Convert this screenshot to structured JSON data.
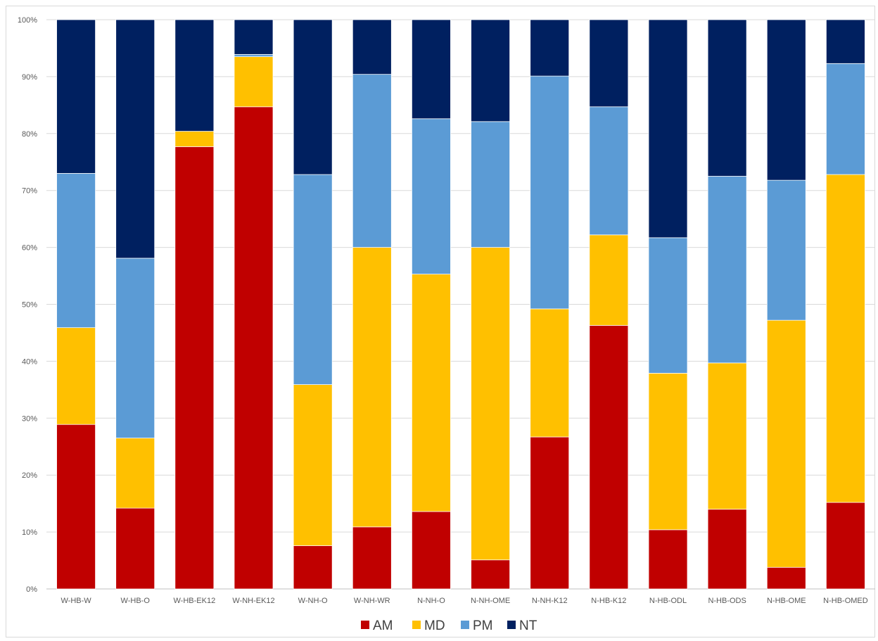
{
  "chart_data": {
    "type": "bar",
    "stacked": "percent",
    "categories": [
      "W-HB-W",
      "W-HB-O",
      "W-HB-EK12",
      "W-NH-EK12",
      "W-NH-O",
      "W-NH-WR",
      "N-NH-O",
      "N-NH-OME",
      "N-NH-K12",
      "N-HB-K12",
      "N-HB-ODL",
      "N-HB-ODS",
      "N-HB-OME",
      "N-HB-OMED"
    ],
    "series": [
      {
        "name": "AM",
        "color": "#C00000",
        "values": [
          28.9,
          14.2,
          77.7,
          84.7,
          7.6,
          10.9,
          13.6,
          5.1,
          26.7,
          46.3,
          10.4,
          14.0,
          3.8,
          15.2
        ]
      },
      {
        "name": "MD",
        "color": "#FFC000",
        "values": [
          17.0,
          12.3,
          2.7,
          8.8,
          28.3,
          49.1,
          41.7,
          54.9,
          22.5,
          15.9,
          27.5,
          25.7,
          43.4,
          57.6
        ]
      },
      {
        "name": "PM",
        "color": "#5B9BD5",
        "values": [
          27.1,
          31.6,
          0.0,
          0.4,
          36.9,
          30.4,
          27.3,
          22.1,
          40.9,
          22.5,
          23.8,
          32.8,
          24.6,
          19.5
        ]
      },
      {
        "name": "NT",
        "color": "#002060",
        "values": [
          27.0,
          41.9,
          19.6,
          6.1,
          27.2,
          9.6,
          17.4,
          17.9,
          9.9,
          15.3,
          38.3,
          27.5,
          28.2,
          7.7
        ]
      }
    ],
    "ylim": [
      0,
      100
    ],
    "y_ticks": [
      "0%",
      "10%",
      "20%",
      "30%",
      "40%",
      "50%",
      "60%",
      "70%",
      "80%",
      "90%",
      "100%"
    ],
    "grid": true,
    "legend_position": "bottom"
  }
}
